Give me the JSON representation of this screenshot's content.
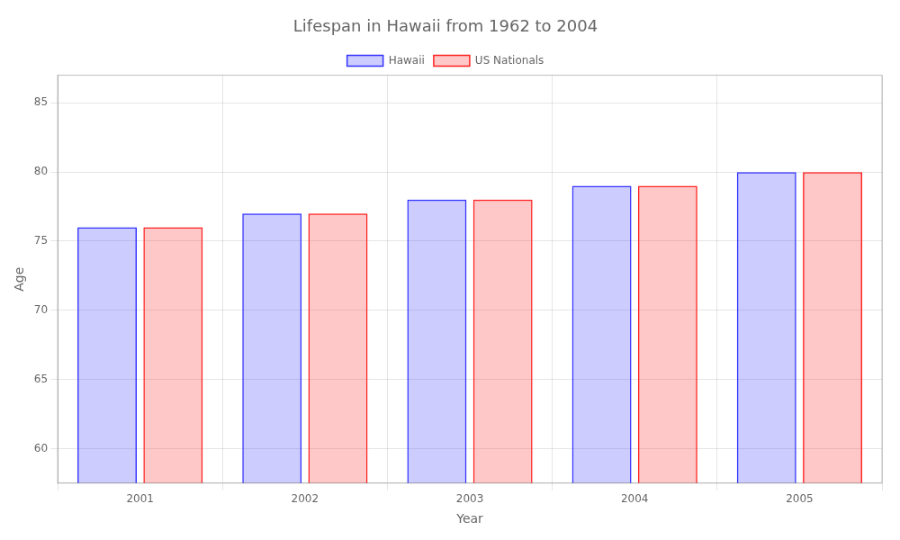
{
  "chart_data": {
    "type": "bar",
    "title": "Lifespan in Hawaii from 1962 to 2004",
    "xlabel": "Year",
    "ylabel": "Age",
    "categories": [
      "2001",
      "2002",
      "2003",
      "2004",
      "2005"
    ],
    "series": [
      {
        "name": "Hawaii",
        "color": "#3333ff",
        "values": [
          76,
          77,
          78,
          79,
          80
        ]
      },
      {
        "name": "US Nationals",
        "color": "#ff2222",
        "values": [
          76,
          77,
          78,
          79,
          80
        ]
      }
    ],
    "ylim": [
      57.5,
      87
    ],
    "yticks": [
      60,
      65,
      70,
      75,
      80,
      85
    ],
    "grid": true,
    "legend": "top"
  }
}
